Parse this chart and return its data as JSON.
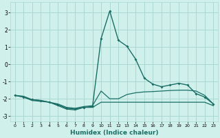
{
  "xlabel": "Humidex (Indice chaleur)",
  "xlim": [
    -0.5,
    23.5
  ],
  "ylim": [
    -3.3,
    3.6
  ],
  "yticks": [
    -3,
    -2,
    -1,
    0,
    1,
    2,
    3
  ],
  "xticks": [
    0,
    1,
    2,
    3,
    4,
    5,
    6,
    7,
    8,
    9,
    10,
    11,
    12,
    13,
    14,
    15,
    16,
    17,
    18,
    19,
    20,
    21,
    22,
    23
  ],
  "bg_color": "#cff0eb",
  "grid_color": "#aad8d0",
  "line_color": "#1a6e65",
  "line1_x": [
    0,
    1,
    2,
    3,
    4,
    5,
    6,
    7,
    8,
    9,
    10,
    11,
    12,
    13,
    14,
    15,
    16,
    17,
    18,
    19,
    20,
    21,
    22,
    23
  ],
  "line1_y": [
    -1.8,
    -1.9,
    -2.05,
    -2.1,
    -2.2,
    -2.35,
    -2.55,
    -2.6,
    -2.5,
    -2.45,
    1.5,
    3.1,
    1.4,
    1.05,
    0.3,
    -0.8,
    -1.15,
    -1.3,
    -1.2,
    -1.1,
    -1.2,
    -1.7,
    -1.9,
    -2.3
  ],
  "line2_x": [
    0,
    1,
    2,
    3,
    4,
    5,
    6,
    7,
    8,
    9,
    10,
    11,
    12,
    13,
    14,
    15,
    16,
    17,
    18,
    19,
    20,
    21,
    22,
    23
  ],
  "line2_y": [
    -1.8,
    -1.85,
    -2.05,
    -2.1,
    -2.2,
    -2.3,
    -2.5,
    -2.55,
    -2.45,
    -2.4,
    -1.55,
    -2.0,
    -2.0,
    -1.75,
    -1.65,
    -1.6,
    -1.58,
    -1.55,
    -1.52,
    -1.5,
    -1.5,
    -1.55,
    -1.8,
    -2.3
  ],
  "line3_x": [
    0,
    1,
    2,
    3,
    4,
    5,
    6,
    7,
    8,
    9,
    10,
    11,
    12,
    13,
    14,
    15,
    16,
    17,
    18,
    19,
    20,
    21,
    22,
    23
  ],
  "line3_y": [
    -1.8,
    -1.9,
    -2.1,
    -2.15,
    -2.2,
    -2.4,
    -2.6,
    -2.65,
    -2.5,
    -2.5,
    -2.2,
    -2.2,
    -2.2,
    -2.2,
    -2.2,
    -2.2,
    -2.2,
    -2.2,
    -2.2,
    -2.2,
    -2.2,
    -2.2,
    -2.2,
    -2.4
  ]
}
